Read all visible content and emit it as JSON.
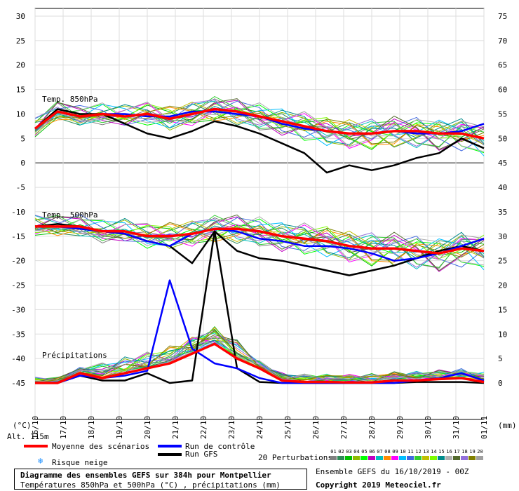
{
  "chart_data": {
    "type": "line",
    "title": "Diagramme des ensembles GEFS sur 384h pour Montpellier",
    "subtitle": "Températures 850hPa et 500hPa (°C) , précipitations (mm)",
    "run_info": "Ensemble GEFS du 16/10/2019 - 00Z",
    "copyright": "Copyright 2019 Meteociel.fr",
    "altitude_label": "Alt. 115m",
    "left_axis_unit": "(°C)",
    "right_axis_unit": "(mm)",
    "left_ticks": [
      30,
      25,
      20,
      15,
      10,
      5,
      0,
      -5,
      -10,
      -15,
      -20,
      -25,
      -30,
      -35,
      -40,
      -45
    ],
    "right_ticks": [
      75,
      70,
      65,
      60,
      55,
      50,
      45,
      40,
      35,
      30,
      25,
      20,
      15,
      10,
      5,
      0
    ],
    "left_range": [
      -45,
      30
    ],
    "right_range": [
      0,
      75
    ],
    "x_labels": [
      "16/10",
      "17/10",
      "18/10",
      "19/10",
      "20/10",
      "21/10",
      "22/10",
      "23/10",
      "24/10",
      "25/10",
      "26/10",
      "27/10",
      "28/10",
      "29/10",
      "30/10",
      "31/10",
      "01/11"
    ],
    "panel_labels": {
      "t850": "Temp. 850hPa",
      "t500": "Temp. 500hPa",
      "precip": "Précipitations"
    },
    "grid": true,
    "series": [
      {
        "name": "Moyenne des scénarios",
        "role": "mean",
        "color": "#ff0000",
        "t850": [
          7,
          10.5,
          9.5,
          10,
          9.5,
          10,
          9,
          10,
          11,
          10.5,
          9.5,
          8.5,
          7.5,
          6.5,
          6,
          6,
          6.5,
          6.5,
          6,
          6,
          5
        ],
        "t500": [
          -13,
          -13,
          -13,
          -14,
          -14,
          -15,
          -15,
          -14.5,
          -13.5,
          -13.5,
          -14,
          -15,
          -15.5,
          -16,
          -17,
          -17.5,
          -17.5,
          -18,
          -18.5,
          -17.5,
          -18
        ],
        "precip": [
          -45,
          -45,
          -43,
          -44,
          -43,
          -42,
          -41,
          -39,
          -37,
          -40,
          -42,
          -44.5,
          -44.8,
          -44.8,
          -44.9,
          -44.9,
          -44.5,
          -44.5,
          -44.2,
          -44,
          -44.8
        ]
      },
      {
        "name": "Run de contrôle",
        "role": "control",
        "color": "#0000ff",
        "t850": [
          7,
          10.5,
          9.5,
          10,
          10,
          9.5,
          9.5,
          10.5,
          10.5,
          10,
          9.5,
          8,
          7,
          6.5,
          6,
          6,
          6.5,
          6,
          6,
          6.5,
          8
        ],
        "t500": [
          -13,
          -13,
          -13.5,
          -14,
          -14.5,
          -16,
          -17,
          -14.5,
          -13.5,
          -14,
          -15.5,
          -16,
          -17,
          -17,
          -17.5,
          -18.5,
          -20,
          -19.5,
          -18.5,
          -17,
          -15.5
        ],
        "precip": [
          -45,
          -45,
          -43.5,
          -44,
          -43.5,
          -42.5,
          -24,
          -38,
          -41,
          -42,
          -44,
          -45,
          -45,
          -45,
          -45,
          -45,
          -45,
          -44.5,
          -44,
          -43,
          -44.5
        ]
      },
      {
        "name": "Run GFS",
        "role": "gfs",
        "color": "#000000",
        "t850": [
          7,
          11,
          10,
          10,
          8,
          6,
          5,
          6.5,
          8.5,
          7.5,
          6,
          4,
          2,
          -2,
          -0.5,
          -1.5,
          -0.5,
          1,
          2,
          5,
          3
        ],
        "t500": [
          -13,
          -12.5,
          -13,
          -14,
          -14.5,
          -16,
          -17,
          -20.5,
          -14,
          -18,
          -19.5,
          -20,
          -21,
          -22,
          -23,
          -22,
          -21,
          -19.5,
          -18,
          -17,
          -18
        ],
        "precip": [
          -45,
          -45,
          -43.5,
          -44.5,
          -44.5,
          -43,
          -45,
          -44.5,
          -14,
          -42,
          -44.8,
          -45,
          -45,
          -45,
          -45,
          -45,
          -45,
          -44.8,
          -44.8,
          -44.8,
          -45
        ]
      }
    ],
    "perturbations_count": 20,
    "perturbations_label": "20 Perturbations",
    "perturbation_numbers": [
      "01",
      "02",
      "03",
      "04",
      "05",
      "06",
      "07",
      "08",
      "09",
      "10",
      "11",
      "12",
      "13",
      "14",
      "15",
      "16",
      "17",
      "18",
      "19",
      "20"
    ],
    "perturbation_colors": [
      "#808080",
      "#2e8b57",
      "#00c000",
      "#8fbc00",
      "#00ff00",
      "#c000c0",
      "#00c0c0",
      "#ff8c00",
      "#ff00ff",
      "#00bfff",
      "#4169e1",
      "#32cd32",
      "#c0c000",
      "#7cfc00",
      "#008b8b",
      "#b0b0b0",
      "#556b2f",
      "#9370db",
      "#808000",
      "#a0a0a0"
    ],
    "risque_neige": "Risque neige"
  }
}
